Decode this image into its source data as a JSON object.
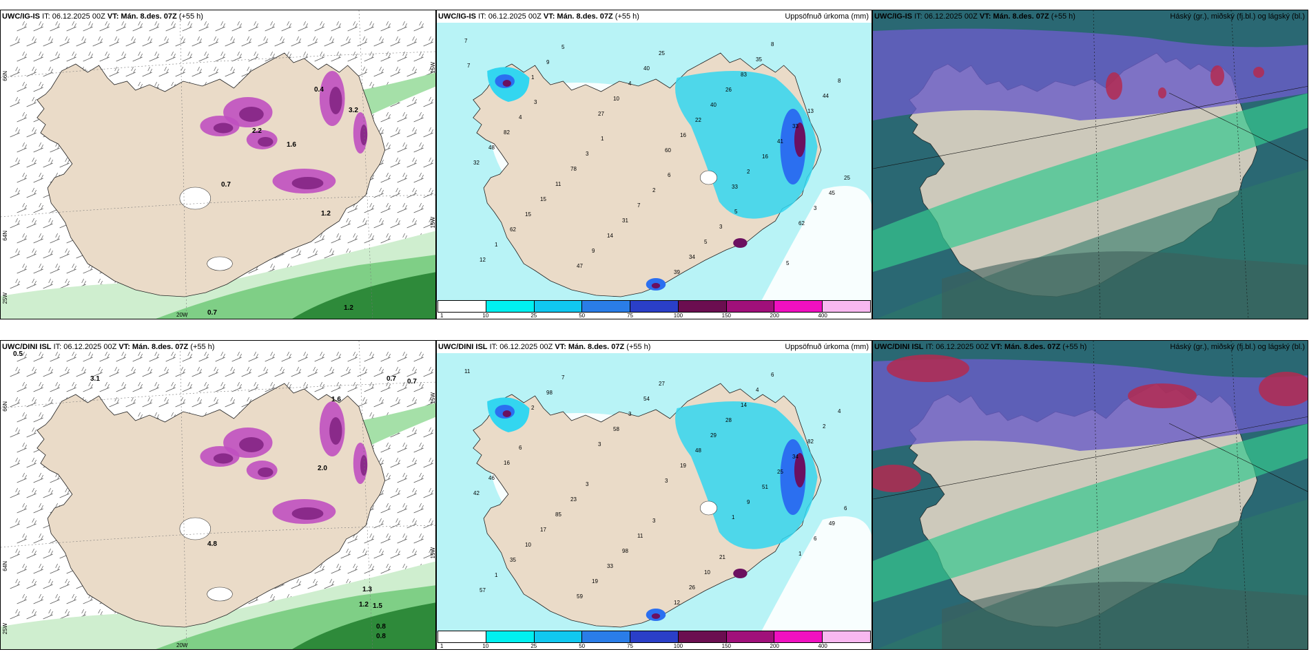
{
  "panels": [
    {
      "model": "UWC/IG-IS",
      "it": "IT: 06.12.2025 00Z",
      "vt": "VT: Mán. 8.des. 07Z",
      "lead": "(+55 h)",
      "title_right": "",
      "kind": "wind",
      "axis": {
        "lat1": "66N",
        "lat2": "64N",
        "lon1": "25W",
        "lon2": "20W",
        "right1": "15W",
        "right2": "15W"
      },
      "values": [
        "0.7",
        "1.2",
        "2.2",
        "1.6",
        "0.4",
        "1.2",
        "0.7",
        "3.2"
      ]
    },
    {
      "model": "UWC/IG-IS",
      "it": "IT: 06.12.2025 00Z",
      "vt": "VT: Mán. 8.des. 07Z",
      "lead": "(+55 h)",
      "title_right": "Uppsöfnuð úrkoma (mm)",
      "kind": "precip",
      "values": [
        "7",
        "1",
        "27",
        "60",
        "33",
        "62",
        "12",
        "9",
        "10",
        "16",
        "2",
        "3",
        "1",
        "5",
        "4",
        "22",
        "16",
        "45",
        "62",
        "47",
        "40",
        "40",
        "41",
        "25",
        "15",
        "9",
        "25",
        "26",
        "33",
        "32",
        "15",
        "14",
        "39",
        "83",
        "13",
        "48",
        "11",
        "31",
        "34",
        "35",
        "44",
        "82",
        "78",
        "7",
        "5",
        "8",
        "8",
        "4",
        "3",
        "2",
        "3",
        "5",
        "7",
        "3",
        "1",
        "6",
        "5"
      ],
      "legend": [
        "1",
        "10",
        "25",
        "50",
        "75",
        "100",
        "150",
        "200",
        "400"
      ]
    },
    {
      "model": "UWC/IG-IS",
      "it": "IT: 06.12.2025 00Z",
      "vt": "VT: Mán. 8.des. 07Z",
      "lead": "(+55 h)",
      "title_right": "Háský (gr.), miðský (fj.bl.) og lágský (bl.)",
      "kind": "cloud"
    },
    {
      "model": "UWC/DINI ISL",
      "it": "IT: 06.12.2025 00Z",
      "vt": "VT: Mán. 8.des. 07Z",
      "lead": "(+55 h)",
      "title_right": "",
      "kind": "wind",
      "axis": {
        "lat1": "66N",
        "lat2": "64N",
        "lon1": "25W",
        "lon2": "20W",
        "right1": "15W",
        "right2": "15W"
      },
      "values": [
        "0.5",
        "0.7",
        "0.7",
        "1.3",
        "1.2",
        "1.5",
        "0.8",
        "0.8",
        "3.1",
        "4.8",
        "2.0",
        "1.6"
      ]
    },
    {
      "model": "UWC/DINI ISL",
      "it": "IT: 06.12.2025 00Z",
      "vt": "VT: Mán. 8.des. 07Z",
      "lead": "(+55 h)",
      "title_right": "Uppsöfnuð úrkoma (mm)",
      "kind": "precip",
      "values": [
        "11",
        "2",
        "3",
        "3",
        "1",
        "1",
        "57",
        "98",
        "58",
        "19",
        "9",
        "6",
        "1",
        "7",
        "3",
        "48",
        "51",
        "49",
        "35",
        "59",
        "54",
        "29",
        "25",
        "6",
        "10",
        "19",
        "27",
        "28",
        "34",
        "42",
        "17",
        "33",
        "12",
        "14",
        "82",
        "46",
        "85",
        "98",
        "26",
        "4",
        "2",
        "16",
        "23",
        "11",
        "10",
        "6",
        "4",
        "6",
        "3",
        "3",
        "21"
      ],
      "legend": [
        "1",
        "10",
        "25",
        "50",
        "75",
        "100",
        "150",
        "200",
        "400"
      ]
    },
    {
      "model": "UWC/DINI ISL",
      "it": "IT: 06.12.2025 00Z",
      "vt": "VT: Mán. 8.des. 07Z",
      "lead": "(+55 h)",
      "title_right": "Háský (gr.), miðský (fj.bl.) og lágský (bl.)",
      "kind": "cloud"
    }
  ],
  "colors": {
    "land": "#eadbc8",
    "precip_light": "#b8f3f6",
    "precip_mid": "#33d6f0",
    "precip_high": "#2b6ff0",
    "precip_max": "#6b1060",
    "snow": "#c050c0",
    "cloud_ocean": "#2a6873",
    "cloud_green": "#36c78f",
    "cloud_blue": "#6a5cc8",
    "cloud_red": "#b32a50",
    "legend_colors": [
      "#ffffff",
      "#00f0f0",
      "#10c8f0",
      "#2a7de8",
      "#2a3fc8",
      "#6b0e50",
      "#a0107a",
      "#f010c0",
      "#f8b8f0"
    ]
  }
}
